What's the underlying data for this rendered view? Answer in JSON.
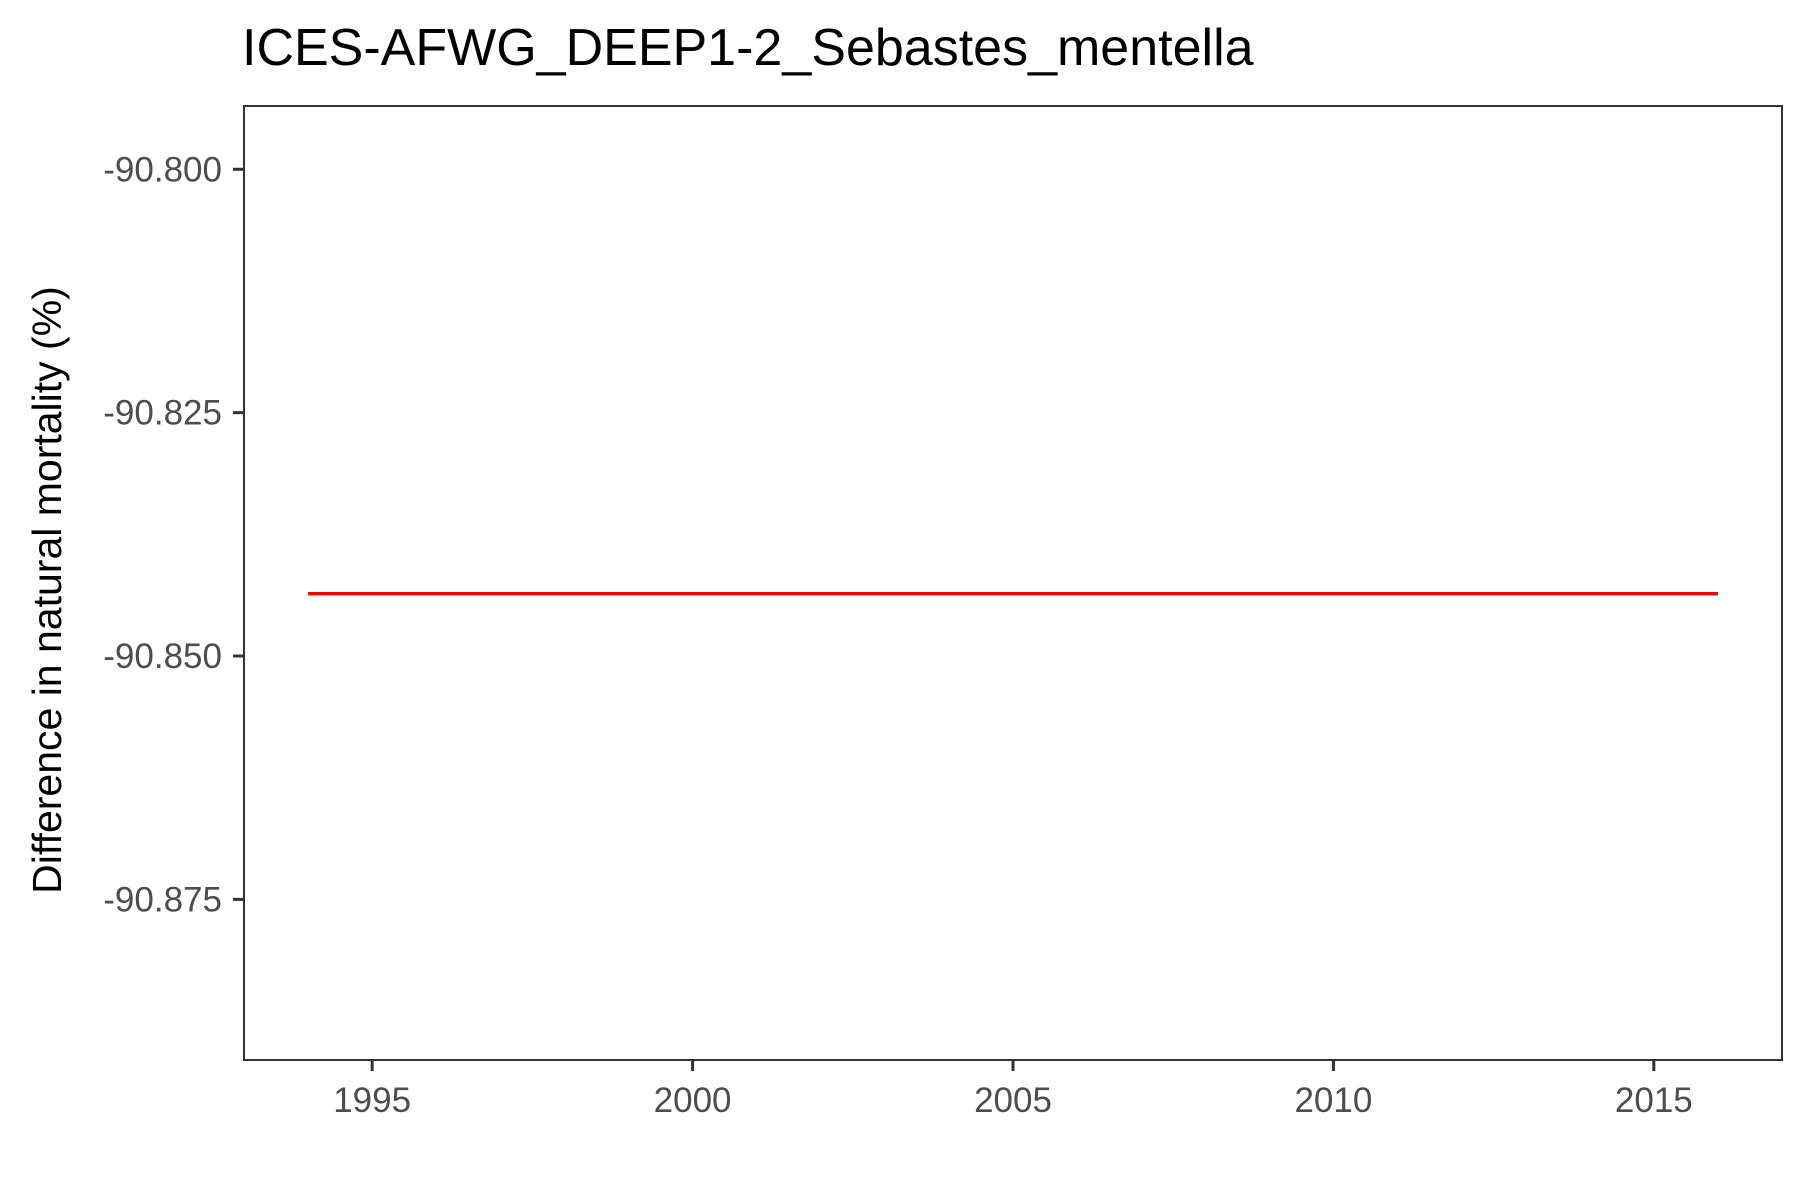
{
  "chart_data": {
    "type": "line",
    "title": "ICES-AFWG_DEEP1-2_Sebastes_mentella",
    "xlabel": "",
    "ylabel": "Difference in natural mortality (%)",
    "xlim": [
      1993,
      2017
    ],
    "ylim": [
      -90.8915,
      -90.7935
    ],
    "x_ticks": [
      1995,
      2000,
      2005,
      2010,
      2015
    ],
    "x_tick_labels": [
      "1995",
      "2000",
      "2005",
      "2010",
      "2015"
    ],
    "y_ticks": [
      -90.8,
      -90.825,
      -90.85,
      -90.875
    ],
    "y_tick_labels": [
      "-90.800",
      "-90.825",
      "-90.850",
      "-90.875"
    ],
    "grid": false,
    "legend": "none",
    "series": [
      {
        "color": "#ff0000",
        "x": [
          1994,
          1995,
          1996,
          1997,
          1998,
          1999,
          2000,
          2001,
          2002,
          2003,
          2004,
          2005,
          2006,
          2007,
          2008,
          2009,
          2010,
          2011,
          2012,
          2013,
          2014,
          2015,
          2016
        ],
        "y": [
          -90.8436,
          -90.8436,
          -90.8436,
          -90.8436,
          -90.8436,
          -90.8436,
          -90.8436,
          -90.8436,
          -90.8436,
          -90.8436,
          -90.8436,
          -90.8436,
          -90.8436,
          -90.8436,
          -90.8436,
          -90.8436,
          -90.8436,
          -90.8436,
          -90.8436,
          -90.8436,
          -90.8436,
          -90.8436,
          -90.8436
        ]
      }
    ]
  }
}
